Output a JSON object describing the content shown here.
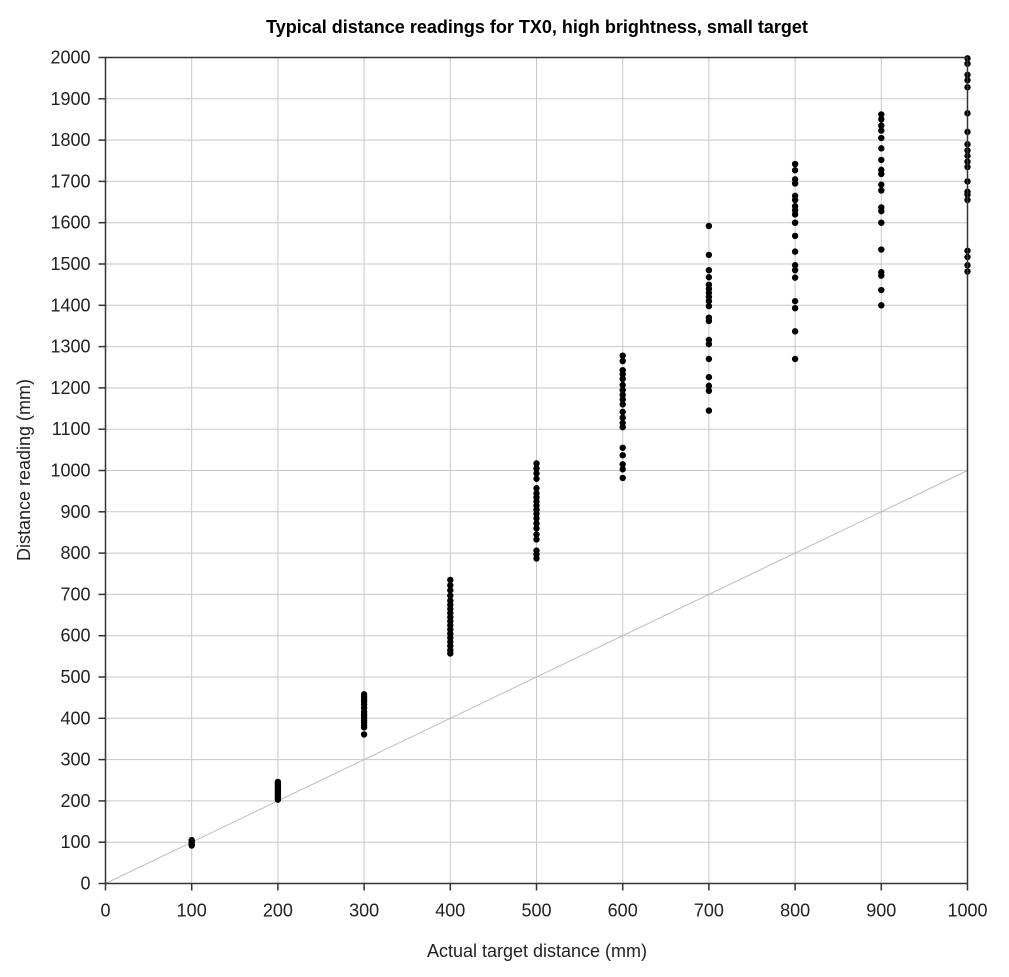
{
  "chart_data": {
    "type": "scatter",
    "title": "Typical distance readings for TX0, high brightness, small target",
    "xlabel": "Actual target distance (mm)",
    "ylabel": "Distance reading (mm)",
    "xlim": [
      0,
      1000
    ],
    "ylim": [
      0,
      2000
    ],
    "x_ticks": [
      0,
      100,
      200,
      300,
      400,
      500,
      600,
      700,
      800,
      900,
      1000
    ],
    "y_ticks": [
      0,
      100,
      200,
      300,
      400,
      500,
      600,
      700,
      800,
      900,
      1000,
      1100,
      1200,
      1300,
      1400,
      1500,
      1600,
      1700,
      1800,
      1900,
      2000
    ],
    "grid": true,
    "reference_line": {
      "from": [
        0,
        0
      ],
      "to": [
        1000,
        1000
      ],
      "color": "#bdbdbd"
    },
    "marker_color": "#000000",
    "series": [
      {
        "points": [
          [
            100,
            92
          ],
          [
            100,
            96
          ],
          [
            100,
            99
          ],
          [
            100,
            102
          ],
          [
            100,
            105
          ],
          [
            200,
            203
          ],
          [
            200,
            207
          ],
          [
            200,
            211
          ],
          [
            200,
            215
          ],
          [
            200,
            219
          ],
          [
            200,
            223
          ],
          [
            200,
            227
          ],
          [
            200,
            231
          ],
          [
            200,
            235
          ],
          [
            200,
            239
          ],
          [
            200,
            243
          ],
          [
            200,
            246
          ],
          [
            300,
            361
          ],
          [
            300,
            378
          ],
          [
            300,
            384
          ],
          [
            300,
            390
          ],
          [
            300,
            395
          ],
          [
            300,
            400
          ],
          [
            300,
            405
          ],
          [
            300,
            410
          ],
          [
            300,
            416
          ],
          [
            300,
            425
          ],
          [
            300,
            433
          ],
          [
            300,
            440
          ],
          [
            300,
            446
          ],
          [
            300,
            452
          ],
          [
            300,
            458
          ],
          [
            400,
            557
          ],
          [
            400,
            565
          ],
          [
            400,
            575
          ],
          [
            400,
            585
          ],
          [
            400,
            595
          ],
          [
            400,
            605
          ],
          [
            400,
            615
          ],
          [
            400,
            625
          ],
          [
            400,
            635
          ],
          [
            400,
            645
          ],
          [
            400,
            655
          ],
          [
            400,
            665
          ],
          [
            400,
            675
          ],
          [
            400,
            685
          ],
          [
            400,
            697
          ],
          [
            400,
            710
          ],
          [
            400,
            722
          ],
          [
            400,
            735
          ],
          [
            500,
            787
          ],
          [
            500,
            797
          ],
          [
            500,
            806
          ],
          [
            500,
            833
          ],
          [
            500,
            845
          ],
          [
            500,
            860
          ],
          [
            500,
            872
          ],
          [
            500,
            884
          ],
          [
            500,
            895
          ],
          [
            500,
            905
          ],
          [
            500,
            915
          ],
          [
            500,
            925
          ],
          [
            500,
            935
          ],
          [
            500,
            945
          ],
          [
            500,
            957
          ],
          [
            500,
            980
          ],
          [
            500,
            993
          ],
          [
            500,
            1005
          ],
          [
            500,
            1017
          ],
          [
            600,
            982
          ],
          [
            600,
            1003
          ],
          [
            600,
            1015
          ],
          [
            600,
            1037
          ],
          [
            600,
            1055
          ],
          [
            600,
            1105
          ],
          [
            600,
            1115
          ],
          [
            600,
            1128
          ],
          [
            600,
            1142
          ],
          [
            600,
            1160
          ],
          [
            600,
            1172
          ],
          [
            600,
            1183
          ],
          [
            600,
            1195
          ],
          [
            600,
            1207
          ],
          [
            600,
            1222
          ],
          [
            600,
            1233
          ],
          [
            600,
            1243
          ],
          [
            600,
            1265
          ],
          [
            600,
            1278
          ],
          [
            700,
            1145
          ],
          [
            700,
            1193
          ],
          [
            700,
            1205
          ],
          [
            700,
            1226
          ],
          [
            700,
            1270
          ],
          [
            700,
            1306
          ],
          [
            700,
            1316
          ],
          [
            700,
            1362
          ],
          [
            700,
            1370
          ],
          [
            700,
            1398
          ],
          [
            700,
            1410
          ],
          [
            700,
            1420
          ],
          [
            700,
            1430
          ],
          [
            700,
            1440
          ],
          [
            700,
            1450
          ],
          [
            700,
            1468
          ],
          [
            700,
            1485
          ],
          [
            700,
            1522
          ],
          [
            700,
            1592
          ],
          [
            800,
            1270
          ],
          [
            800,
            1337
          ],
          [
            800,
            1393
          ],
          [
            800,
            1410
          ],
          [
            800,
            1467
          ],
          [
            800,
            1485
          ],
          [
            800,
            1497
          ],
          [
            800,
            1530
          ],
          [
            800,
            1568
          ],
          [
            800,
            1600
          ],
          [
            800,
            1620
          ],
          [
            800,
            1630
          ],
          [
            800,
            1640
          ],
          [
            800,
            1655
          ],
          [
            800,
            1665
          ],
          [
            800,
            1695
          ],
          [
            800,
            1705
          ],
          [
            800,
            1727
          ],
          [
            800,
            1742
          ],
          [
            900,
            1400
          ],
          [
            900,
            1437
          ],
          [
            900,
            1472
          ],
          [
            900,
            1480
          ],
          [
            900,
            1535
          ],
          [
            900,
            1600
          ],
          [
            900,
            1628
          ],
          [
            900,
            1637
          ],
          [
            900,
            1678
          ],
          [
            900,
            1692
          ],
          [
            900,
            1718
          ],
          [
            900,
            1728
          ],
          [
            900,
            1752
          ],
          [
            900,
            1780
          ],
          [
            900,
            1805
          ],
          [
            900,
            1823
          ],
          [
            900,
            1835
          ],
          [
            900,
            1850
          ],
          [
            900,
            1862
          ],
          [
            1000,
            1482
          ],
          [
            1000,
            1497
          ],
          [
            1000,
            1517
          ],
          [
            1000,
            1532
          ],
          [
            1000,
            1655
          ],
          [
            1000,
            1668
          ],
          [
            1000,
            1675
          ],
          [
            1000,
            1700
          ],
          [
            1000,
            1735
          ],
          [
            1000,
            1748
          ],
          [
            1000,
            1762
          ],
          [
            1000,
            1775
          ],
          [
            1000,
            1790
          ],
          [
            1000,
            1820
          ],
          [
            1000,
            1865
          ],
          [
            1000,
            1928
          ],
          [
            1000,
            1945
          ],
          [
            1000,
            1958
          ],
          [
            1000,
            1985
          ],
          [
            1000,
            1998
          ]
        ]
      }
    ]
  }
}
